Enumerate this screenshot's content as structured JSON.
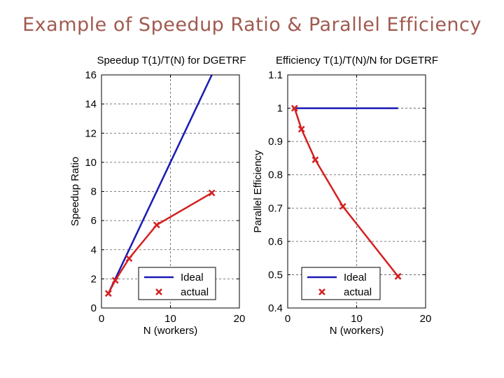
{
  "slide": {
    "title": "Example of Speedup Ratio & Parallel Efficiency"
  },
  "colors": {
    "ideal": "#1a1ab5",
    "actual": "#d42020",
    "title": "#a05a50"
  },
  "chart_data": [
    {
      "type": "line",
      "title": "Speedup T(1)/T(N) for DGETRF",
      "xlabel": "N (workers)",
      "ylabel": "Speedup Ratio",
      "xlim": [
        0,
        20
      ],
      "ylim": [
        0,
        16
      ],
      "xticks": [
        "0",
        "10",
        "20"
      ],
      "yticks": [
        "0",
        "2",
        "4",
        "6",
        "8",
        "10",
        "12",
        "14",
        "16"
      ],
      "grid": true,
      "legend": "bottom-right",
      "series": [
        {
          "name": "Ideal",
          "marker": "none",
          "x": [
            1,
            16
          ],
          "y": [
            1,
            16
          ]
        },
        {
          "name": "actual",
          "marker": "x",
          "x": [
            1,
            2,
            4,
            8,
            16
          ],
          "y": [
            1,
            1.9,
            3.4,
            5.7,
            7.9
          ]
        }
      ]
    },
    {
      "type": "line",
      "title": "Efficiency T(1)/T(N)/N for DGETRF",
      "xlabel": "N (workers)",
      "ylabel": "Parallel Efficiency",
      "xlim": [
        0,
        20
      ],
      "ylim": [
        0.4,
        1.1
      ],
      "xticks": [
        "0",
        "10",
        "20"
      ],
      "yticks": [
        "0.4",
        "0.5",
        "0.6",
        "0.7",
        "0.8",
        "0.9",
        "1",
        "1.1"
      ],
      "grid": true,
      "legend": "bottom-right",
      "series": [
        {
          "name": "Ideal",
          "marker": "none",
          "x": [
            1,
            16
          ],
          "y": [
            1,
            1
          ]
        },
        {
          "name": "actual",
          "marker": "x",
          "x": [
            1,
            2,
            4,
            8,
            16
          ],
          "y": [
            1,
            0.937,
            0.845,
            0.705,
            0.495
          ]
        }
      ]
    }
  ]
}
